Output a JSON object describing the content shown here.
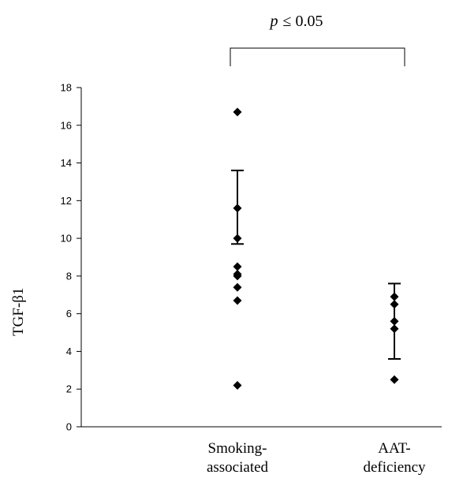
{
  "chart_data": {
    "type": "scatter",
    "title": "",
    "xlabel": "",
    "ylabel": "TGF-β1",
    "ylim": [
      0,
      18
    ],
    "yticks": [
      0,
      2,
      4,
      6,
      8,
      10,
      12,
      14,
      16,
      18
    ],
    "grid": false,
    "categories": [
      {
        "line1": "Smoking-",
        "line2": "associated"
      },
      {
        "line1": "AAT-",
        "line2": "deficiency"
      }
    ],
    "series": [
      {
        "category_index": 0,
        "values": [
          16.7,
          11.6,
          10.0,
          8.5,
          8.1,
          8.0,
          7.4,
          6.7,
          2.2
        ],
        "error_bar": {
          "low": 9.7,
          "high": 13.6
        }
      },
      {
        "category_index": 1,
        "values": [
          6.9,
          6.5,
          5.6,
          5.2,
          2.5
        ],
        "error_bar": {
          "low": 3.6,
          "high": 7.6
        }
      }
    ],
    "annotation": {
      "p_symbol": "p",
      "comparison": "≤ 0.05"
    },
    "marker_color": "#000000"
  }
}
